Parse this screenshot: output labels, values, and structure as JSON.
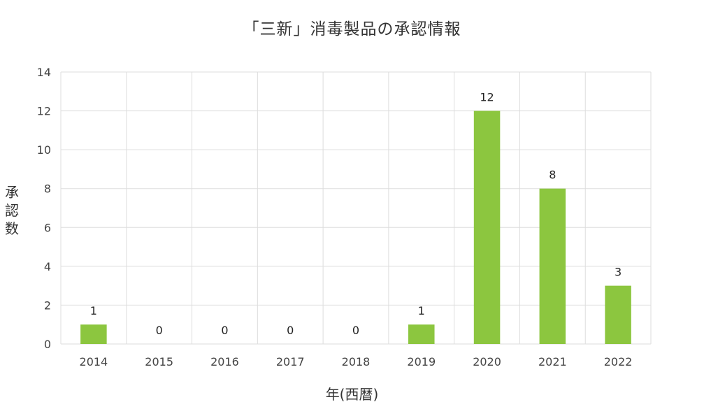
{
  "chart_data": {
    "type": "bar",
    "title": "「三新」消毒製品の承認情報",
    "xlabel": "年(西暦)",
    "ylabel": [
      "承",
      "認",
      "数"
    ],
    "categories": [
      "2014",
      "2015",
      "2016",
      "2017",
      "2018",
      "2019",
      "2020",
      "2021",
      "2022"
    ],
    "values": [
      1,
      0,
      0,
      0,
      0,
      1,
      12,
      8,
      3
    ],
    "ylim": [
      0,
      14
    ],
    "yticks": [
      0,
      2,
      4,
      6,
      8,
      10,
      12,
      14
    ],
    "grid": true,
    "bar_color": "#8cc63f",
    "grid_color": "#dddddd"
  }
}
